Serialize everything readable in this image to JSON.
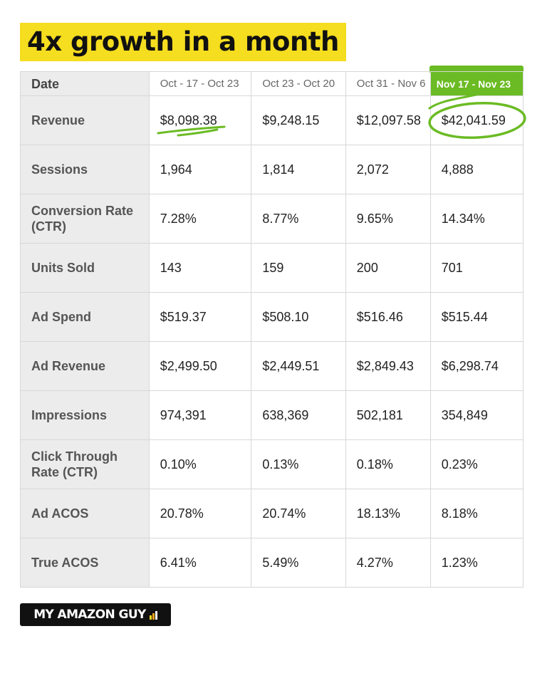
{
  "title": "4x growth in a month",
  "table": {
    "header_label": "Date",
    "columns": [
      "Oct - 17 - Oct 23",
      "Oct 23 - Oct 20",
      "Oct 31 - Nov 6",
      "Nov 17 - Nov 23"
    ],
    "highlighted_column": 3,
    "rows": [
      {
        "label": "Revenue",
        "values": [
          "$8,098.38",
          "$9,248.15",
          "$12,097.58",
          "$42,041.59"
        ]
      },
      {
        "label": "Sessions",
        "values": [
          "1,964",
          "1,814",
          "2,072",
          "4,888"
        ]
      },
      {
        "label": "Conversion Rate (CTR)",
        "values": [
          "7.28%",
          "8.77%",
          "9.65%",
          "14.34%"
        ]
      },
      {
        "label": "Units Sold",
        "values": [
          "143",
          "159",
          "200",
          "701"
        ]
      },
      {
        "label": "Ad Spend",
        "values": [
          "$519.37",
          "$508.10",
          "$516.46",
          "$515.44"
        ]
      },
      {
        "label": "Ad Revenue",
        "values": [
          "$2,499.50",
          "$2,449.51",
          "$2,849.43",
          "$6,298.74"
        ]
      },
      {
        "label": "Impressions",
        "values": [
          "974,391",
          "638,369",
          "502,181",
          "354,849"
        ]
      },
      {
        "label": "Click Through Rate (CTR)",
        "values": [
          "0.10%",
          "0.13%",
          "0.18%",
          "0.23%"
        ]
      },
      {
        "label": "Ad ACOS",
        "values": [
          "20.78%",
          "20.74%",
          "18.13%",
          "8.18%"
        ]
      },
      {
        "label": "True ACOS",
        "values": [
          "6.41%",
          "5.49%",
          "4.27%",
          "1.23%"
        ]
      }
    ]
  },
  "logo": {
    "text": "MY AMAZON GUY",
    "icon": "bar-chart-icon"
  },
  "colors": {
    "title_highlight": "#f5dd1f",
    "accent_green": "#6bbb24",
    "label_bg": "#ececec",
    "grid": "#d7d7d7",
    "logo_bg": "#111111",
    "logo_bars": [
      "#f5dd1f",
      "#f0a21b",
      "#ffffff"
    ]
  }
}
